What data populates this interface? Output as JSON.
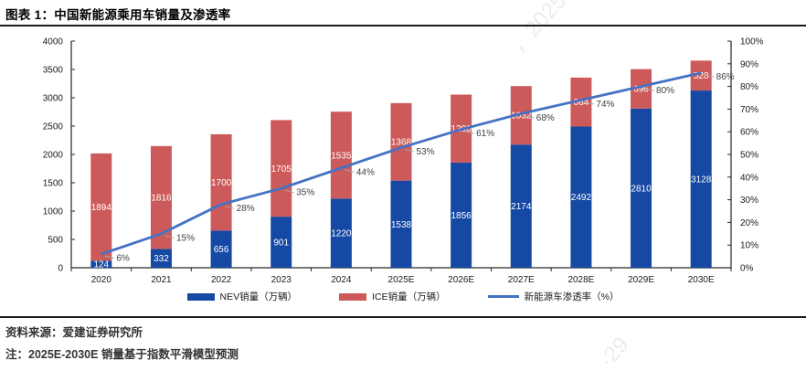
{
  "header": {
    "title": "图表 1：中国新能源乘用车销量及渗透率"
  },
  "chart_data": {
    "type": "bar",
    "subtype": "stacked-bars-with-line",
    "title": "中国新能源乘用车销量及渗透率",
    "categories": [
      "2020",
      "2021",
      "2022",
      "2023",
      "2024",
      "2025E",
      "2026E",
      "2027E",
      "2028E",
      "2029E",
      "2030E"
    ],
    "series": [
      {
        "name": "NEV销量（万辆）",
        "type": "bar",
        "axis": "left",
        "color": "#1549a4",
        "values": [
          124,
          332,
          656,
          901,
          1220,
          1538,
          1856,
          2174,
          2492,
          2810,
          3128
        ]
      },
      {
        "name": "ICE销量（万辆）",
        "type": "bar",
        "axis": "left",
        "color": "#cd5a5a",
        "values": [
          1894,
          1816,
          1700,
          1705,
          1535,
          1368,
          1200,
          1032,
          864,
          696,
          528
        ]
      },
      {
        "name": "新能源车渗透率（%）",
        "type": "line",
        "axis": "right",
        "color": "#4472c4",
        "values": [
          6,
          15,
          28,
          35,
          44,
          53,
          61,
          68,
          74,
          80,
          86
        ],
        "labels": [
          "6%",
          "15%",
          "28%",
          "35%",
          "44%",
          "53%",
          "61%",
          "68%",
          "74%",
          "80%",
          "86%"
        ]
      }
    ],
    "left_axis": {
      "min": 0,
      "max": 4000,
      "step": 500
    },
    "right_axis": {
      "min": 0,
      "max": 100,
      "step": 10,
      "suffix": "%"
    },
    "grid": false,
    "legend_position": "bottom"
  },
  "footer": {
    "source": "资料来源：爱建证券研究所",
    "note": "注：2025E-2030E 销量基于指数平滑模型预测"
  },
  "watermarks": [
    {
      "text": "，2025",
      "position": "top-center"
    },
    {
      "text": "·29",
      "position": "bottom-right"
    }
  ],
  "colors": {
    "nev_bar": "#1549a4",
    "ice_bar": "#cd5a5a",
    "penetration_line": "#4472c4",
    "axis": "#262626",
    "bar_label": "#ffffff",
    "pct_label": "#404040",
    "rule": "#1a1a1a"
  }
}
